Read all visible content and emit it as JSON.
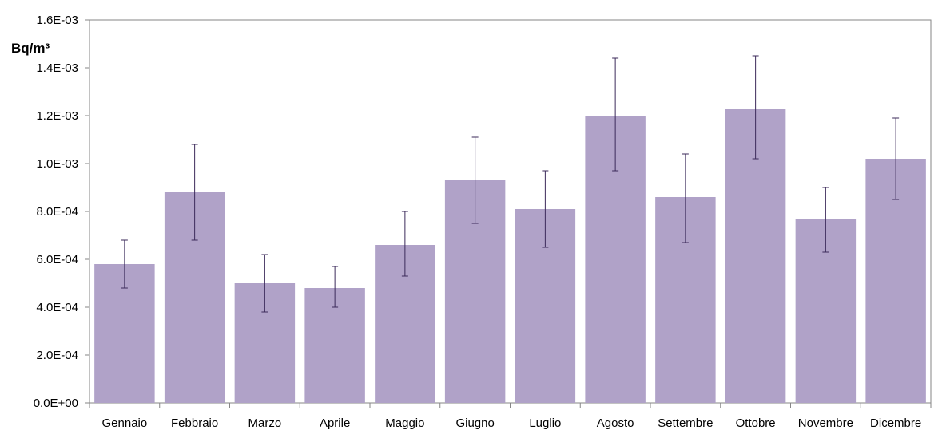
{
  "chart_data": {
    "type": "bar",
    "title": "",
    "xlabel": "",
    "ylabel": "Bq/m³",
    "ylim": [
      0,
      0.0016
    ],
    "yticks": [
      0,
      0.0002,
      0.0004,
      0.0006,
      0.0008,
      0.001,
      0.0012,
      0.0014,
      0.0016
    ],
    "ytick_labels": [
      "0.0E+00",
      "2.0E-04",
      "4.0E-04",
      "6.0E-04",
      "8.0E-04",
      "1.0E-03",
      "1.2E-03",
      "1.4E-03",
      "1.6E-03"
    ],
    "categories": [
      "Gennaio",
      "Febbraio",
      "Marzo",
      "Aprile",
      "Maggio",
      "Giugno",
      "Luglio",
      "Agosto",
      "Settembre",
      "Ottobre",
      "Novembre",
      "Dicembre"
    ],
    "values": [
      0.00058,
      0.00088,
      0.0005,
      0.00048,
      0.00066,
      0.00093,
      0.00081,
      0.0012,
      0.00086,
      0.00123,
      0.00077,
      0.00102
    ],
    "error_low": [
      0.00048,
      0.00068,
      0.00038,
      0.0004,
      0.00053,
      0.00075,
      0.00065,
      0.00097,
      0.00067,
      0.00102,
      0.00063,
      0.00085
    ],
    "error_high": [
      0.00068,
      0.00108,
      0.00062,
      0.00057,
      0.0008,
      0.00111,
      0.00097,
      0.00144,
      0.00104,
      0.00145,
      0.0009,
      0.00119
    ],
    "bar_color": "#b0a2c8",
    "error_color": "#3b2a5a",
    "legend": "none",
    "grid": false
  }
}
